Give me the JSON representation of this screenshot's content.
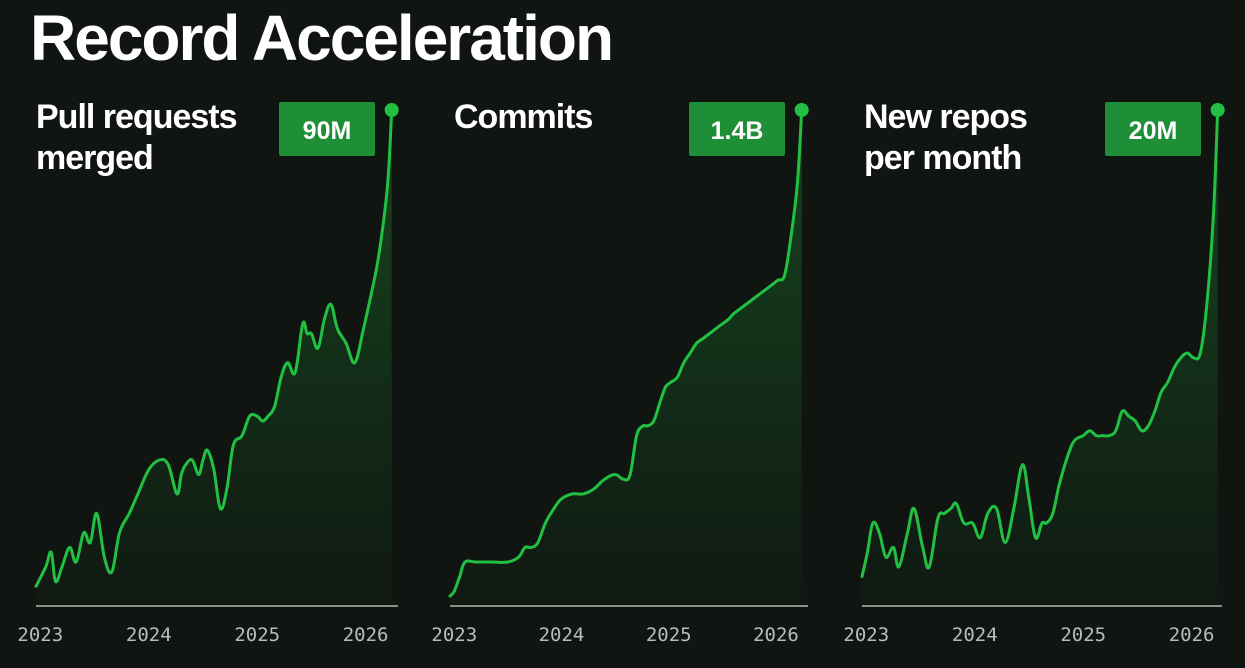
{
  "title": "Record Acceleration",
  "colors": {
    "background": "#101511",
    "line": "#22c042",
    "badge": "#1f8f37",
    "axis": "#8b8f8b",
    "tick_text": "#b9bdb9"
  },
  "chart_data": [
    {
      "type": "area",
      "title_lines": [
        "Pull requests",
        "merged"
      ],
      "value_label": "90M",
      "x_ticks": [
        "2023",
        "2024",
        "2025",
        "2026"
      ],
      "xlim": [
        2022.96,
        2026.28
      ],
      "ylim": [
        0,
        100
      ],
      "series": [
        {
          "x": [
            2022.96,
            2023.05,
            2023.1,
            2023.14,
            2023.2,
            2023.27,
            2023.33,
            2023.4,
            2023.46,
            2023.52,
            2023.59,
            2023.66,
            2023.73,
            2023.82,
            2023.9,
            2024.0,
            2024.1,
            2024.18,
            2024.26,
            2024.3,
            2024.34,
            2024.4,
            2024.46,
            2024.5,
            2024.54,
            2024.6,
            2024.66,
            2024.72,
            2024.78,
            2024.86,
            2024.93,
            2025.0,
            2025.05,
            2025.1,
            2025.16,
            2025.22,
            2025.28,
            2025.35,
            2025.42,
            2025.46,
            2025.5,
            2025.56,
            2025.62,
            2025.68,
            2025.74,
            2025.82,
            2025.9,
            2025.98,
            2026.05,
            2026.12,
            2026.2,
            2026.24
          ],
          "y": [
            2,
            6,
            9,
            3,
            6,
            10,
            7,
            13,
            11,
            17,
            8,
            5,
            13,
            17,
            21,
            26,
            28,
            27,
            21,
            25,
            27,
            28,
            25,
            28,
            30,
            26,
            18,
            22,
            31,
            33,
            37,
            37,
            36,
            37,
            39,
            45,
            48,
            46,
            56,
            54,
            54,
            51,
            57,
            60,
            55,
            52,
            48,
            55,
            62,
            70,
            84,
            100
          ]
        }
      ]
    },
    {
      "type": "area",
      "title_lines": [
        "Commits"
      ],
      "value_label": "1.4B",
      "x_ticks": [
        "2023",
        "2024",
        "2025",
        "2026"
      ],
      "xlim": [
        2022.96,
        2026.28
      ],
      "ylim": [
        0,
        100
      ],
      "series": [
        {
          "x": [
            2022.96,
            2023.0,
            2023.05,
            2023.1,
            2023.2,
            2023.35,
            2023.5,
            2023.6,
            2023.66,
            2023.72,
            2023.78,
            2023.85,
            2023.93,
            2024.0,
            2024.1,
            2024.2,
            2024.3,
            2024.4,
            2024.5,
            2024.58,
            2024.64,
            2024.7,
            2024.76,
            2024.8,
            2024.86,
            2024.92,
            2024.97,
            2025.02,
            2025.08,
            2025.14,
            2025.2,
            2025.26,
            2025.32,
            2025.38,
            2025.44,
            2025.5,
            2025.56,
            2025.6,
            2025.66,
            2025.72,
            2025.78,
            2025.84,
            2025.9,
            2025.96,
            2026.02,
            2026.08,
            2026.14,
            2026.2,
            2026.24
          ],
          "y": [
            0,
            1,
            4,
            7,
            7,
            7,
            7,
            8,
            10,
            10,
            11,
            15,
            18,
            20,
            21,
            21,
            22,
            24,
            25,
            24,
            25,
            33,
            35,
            35,
            36,
            40,
            43,
            44,
            45,
            48,
            50,
            52,
            53,
            54,
            55,
            56,
            57,
            58,
            59,
            60,
            61,
            62,
            63,
            64,
            65,
            66,
            74,
            85,
            100
          ]
        }
      ]
    },
    {
      "type": "area",
      "title_lines": [
        "New repos",
        "per month"
      ],
      "value_label": "20M",
      "x_ticks": [
        "2023",
        "2024",
        "2025",
        "2026"
      ],
      "xlim": [
        2022.96,
        2026.28
      ],
      "ylim": [
        0,
        100
      ],
      "series": [
        {
          "x": [
            2022.96,
            2023.01,
            2023.06,
            2023.12,
            2023.18,
            2023.25,
            2023.3,
            2023.38,
            2023.44,
            2023.52,
            2023.58,
            2023.66,
            2023.72,
            2023.78,
            2023.83,
            2023.9,
            2023.98,
            2024.05,
            2024.12,
            2024.2,
            2024.28,
            2024.36,
            2024.44,
            2024.5,
            2024.56,
            2024.62,
            2024.66,
            2024.72,
            2024.78,
            2024.86,
            2024.92,
            2025.0,
            2025.06,
            2025.12,
            2025.18,
            2025.24,
            2025.3,
            2025.36,
            2025.42,
            2025.48,
            2025.54,
            2025.6,
            2025.66,
            2025.72,
            2025.78,
            2025.84,
            2025.9,
            2025.96,
            2026.02,
            2026.08,
            2026.14,
            2026.2,
            2026.24
          ],
          "y": [
            4,
            9,
            15,
            13,
            8,
            10,
            6,
            13,
            18,
            10,
            6,
            16,
            17,
            18,
            19,
            15,
            15,
            12,
            17,
            18,
            11,
            18,
            27,
            20,
            12,
            15,
            15,
            17,
            23,
            29,
            32,
            33,
            34,
            33,
            33,
            33,
            34,
            38,
            37,
            36,
            34,
            35,
            38,
            42,
            44,
            47,
            49,
            50,
            49,
            50,
            60,
            78,
            100
          ]
        }
      ]
    }
  ]
}
